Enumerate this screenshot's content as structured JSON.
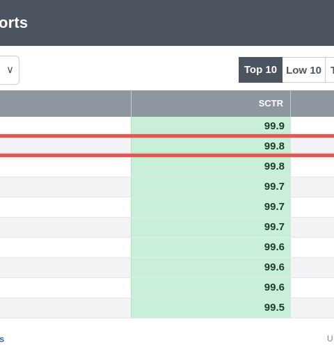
{
  "header": {
    "title": "orts"
  },
  "toolbar": {
    "dropdown_icon": "chevron-down-icon",
    "segments": {
      "top": "Top 10",
      "low": "Low 10",
      "more": "T"
    }
  },
  "table": {
    "sctr_header": "SCTR",
    "sctr_values": [
      "99.9",
      "99.8",
      "99.8",
      "99.7",
      "99.7",
      "99.7",
      "99.6",
      "99.6",
      "99.6",
      "99.5"
    ],
    "highlight_color": "#e05a55",
    "sctr_cell_color": "#c8f0d8"
  },
  "footer": {
    "left": "s",
    "right": "U"
  }
}
